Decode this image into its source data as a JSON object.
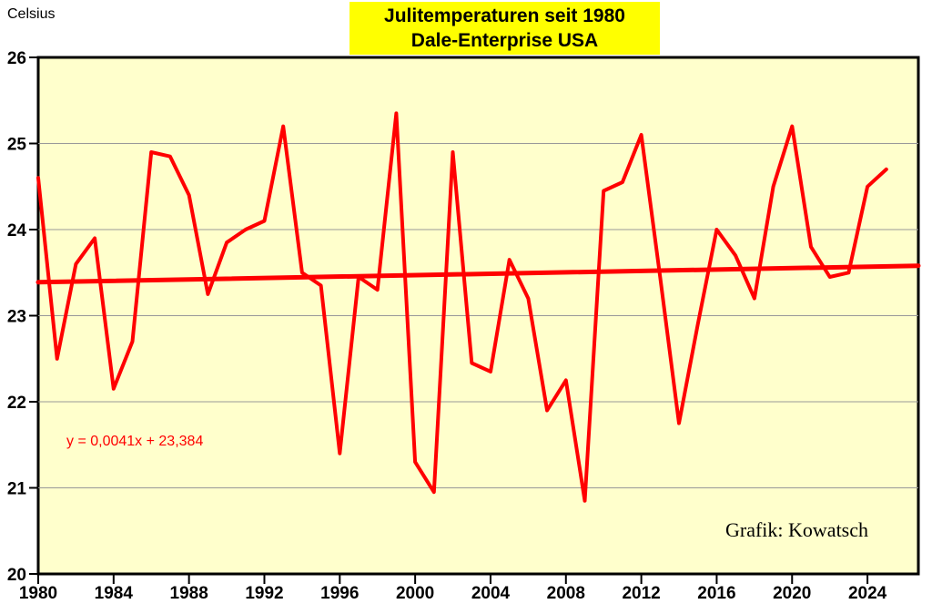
{
  "title": {
    "line1": "Julitemperaturen seit 1980",
    "line2": "Dale-Enterprise USA",
    "bg_color": "#FFFF00",
    "text_color": "#000000"
  },
  "attribution": "Grafik: Kowatsch",
  "trend": {
    "equation_label": "y = 0,0041x + 23,384",
    "slope": 0.0041,
    "intercept": 23.384,
    "x_index_origin_year": 1979,
    "color": "#FF0000"
  },
  "chart_data": {
    "type": "line",
    "title": "Julitemperaturen seit 1980 — Dale-Enterprise USA",
    "ylabel": "Celsius",
    "xlabel": "",
    "x": [
      1980,
      1981,
      1982,
      1983,
      1984,
      1985,
      1986,
      1987,
      1988,
      1989,
      1990,
      1991,
      1992,
      1993,
      1994,
      1995,
      1996,
      1997,
      1998,
      1999,
      2000,
      2001,
      2002,
      2003,
      2004,
      2005,
      2006,
      2007,
      2008,
      2009,
      2010,
      2011,
      2012,
      2013,
      2014,
      2015,
      2016,
      2017,
      2018,
      2019,
      2020,
      2021,
      2022,
      2023,
      2024,
      2025
    ],
    "values": [
      24.6,
      22.5,
      23.6,
      23.9,
      22.15,
      22.7,
      24.9,
      24.85,
      24.4,
      23.25,
      23.85,
      24.0,
      24.1,
      25.2,
      23.5,
      23.35,
      21.4,
      23.45,
      23.3,
      25.35,
      21.3,
      20.95,
      24.9,
      22.45,
      22.35,
      23.65,
      23.2,
      21.9,
      22.25,
      20.85,
      24.45,
      24.55,
      25.1,
      23.45,
      21.75,
      22.9,
      24.0,
      23.7,
      23.2,
      24.5,
      25.2,
      23.8,
      23.45,
      23.5,
      24.5,
      24.7
    ],
    "xlim": [
      1980,
      2026.7
    ],
    "ylim": [
      20,
      26
    ],
    "x_ticks": [
      1980,
      1984,
      1988,
      1992,
      1996,
      2000,
      2004,
      2008,
      2012,
      2016,
      2020,
      2024
    ],
    "y_ticks": [
      20,
      21,
      22,
      23,
      24,
      25,
      26
    ],
    "grid": "horizontal",
    "legend_position": "none",
    "series_color": "#FF0000",
    "plot_bg_color": "#FFFFCC",
    "grid_color": "#999999",
    "axis_color": "#000000"
  }
}
